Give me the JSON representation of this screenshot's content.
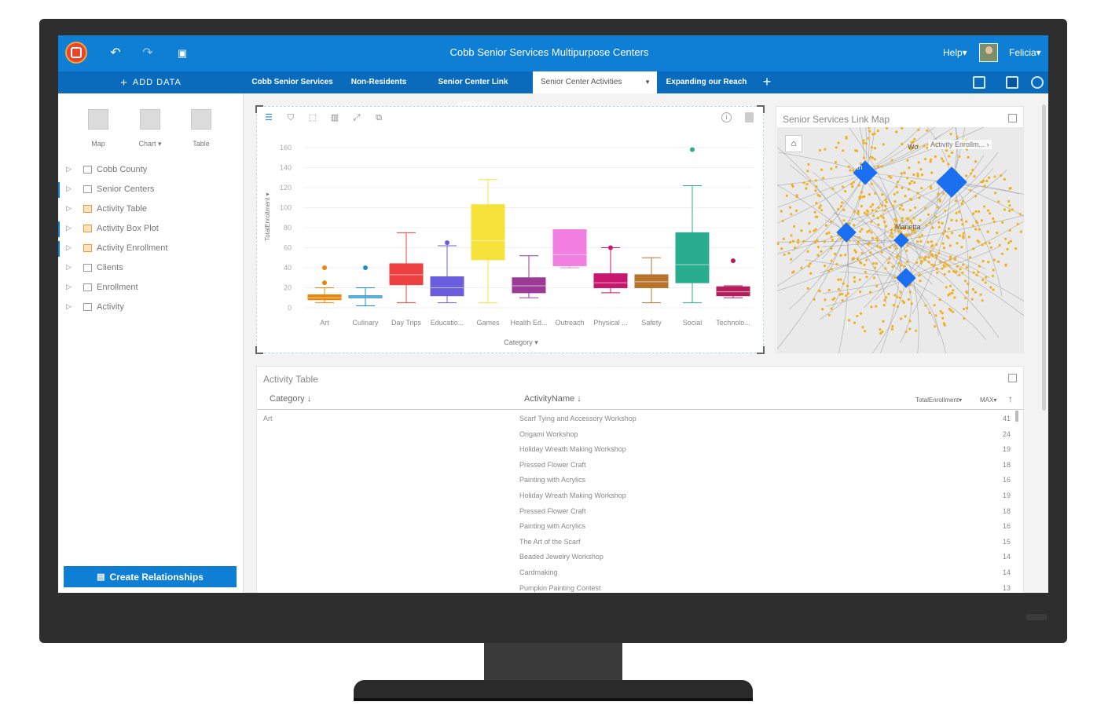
{
  "header": {
    "title": "Cobb Senior Services Multipurpose Centers",
    "help": "Help▾",
    "user": "Felicia▾"
  },
  "tabbar": {
    "add_data": "ADD DATA",
    "tabs": [
      {
        "label": "Cobb Senior Services",
        "active": false
      },
      {
        "label": "Non-Residents",
        "active": false
      },
      {
        "label": "Senior Center Link Analysis",
        "active": false
      },
      {
        "label": "Senior Center Activities",
        "active": true
      },
      {
        "label": "Expanding our Reach",
        "active": false
      }
    ]
  },
  "leftpanel": {
    "vis": [
      {
        "label": "Map"
      },
      {
        "label": "Chart ▾"
      },
      {
        "label": "Table"
      }
    ],
    "datasets": [
      {
        "label": "Cobb County",
        "icon": "table-icon"
      },
      {
        "label": "Senior Centers",
        "icon": "table-icon"
      },
      {
        "label": "Activity Table",
        "icon": "result-table-icon"
      },
      {
        "label": "Activity Box Plot",
        "icon": "result-table-icon"
      },
      {
        "label": "Activity Enrollment",
        "icon": "result-table-icon"
      },
      {
        "label": "Clients",
        "icon": "table-icon"
      },
      {
        "label": "Enrollment",
        "icon": "table-icon"
      },
      {
        "label": "Activity",
        "icon": "table-icon"
      }
    ],
    "create_relationships": "Create Relationships"
  },
  "chart_data": {
    "type": "box",
    "xlabel": "Category ▾",
    "ylabel": "TotalEnrollment ▾",
    "ylim": [
      0,
      160
    ],
    "yticks": [
      0,
      20,
      40,
      60,
      80,
      100,
      120,
      140,
      160
    ],
    "categories": [
      "Art",
      "Culinary",
      "Day Trips",
      "Educatio...",
      "Games",
      "Health Ed...",
      "Outreach",
      "Physical ...",
      "Safety",
      "Social",
      "Technolo..."
    ],
    "boxes": [
      {
        "min": 5,
        "q1": 8,
        "median": 10,
        "q3": 13,
        "max": 20,
        "outliers": [
          25,
          40
        ],
        "color": "#e8850c"
      },
      {
        "min": 2,
        "q1": 10,
        "median": 11,
        "q3": 12,
        "max": 20,
        "outliers": [
          40
        ],
        "color": "#1b8fc7"
      },
      {
        "min": 5,
        "q1": 23,
        "median": 33,
        "q3": 44,
        "max": 75,
        "outliers": [],
        "color": "#ee4040"
      },
      {
        "min": 5,
        "q1": 12,
        "median": 20,
        "q3": 31,
        "max": 62,
        "outliers": [
          65
        ],
        "color": "#6a5ede"
      },
      {
        "min": 5,
        "q1": 48,
        "median": 67,
        "q3": 103,
        "max": 128,
        "outliers": [],
        "color": "#f7e23b"
      },
      {
        "min": 10,
        "q1": 15,
        "median": 22,
        "q3": 30,
        "max": 52,
        "outliers": [],
        "color": "#9c3b97"
      },
      {
        "min": 40,
        "q1": 42,
        "median": 53,
        "q3": 78,
        "max": 78,
        "outliers": [],
        "color": "#f17ee0"
      },
      {
        "min": 15,
        "q1": 20,
        "median": 25,
        "q3": 34,
        "max": 60,
        "outliers": [
          60
        ],
        "color": "#c7176e"
      },
      {
        "min": 5,
        "q1": 20,
        "median": 26,
        "q3": 33,
        "max": 50,
        "outliers": [],
        "color": "#b8732d"
      },
      {
        "min": 5,
        "q1": 25,
        "median": 43,
        "q3": 75,
        "max": 122,
        "outliers": [
          158
        ],
        "color": "#2aad8e"
      },
      {
        "min": 10,
        "q1": 12,
        "median": 16,
        "q3": 21,
        "max": 22,
        "outliers": [
          47
        ],
        "color": "#b21f5a"
      }
    ]
  },
  "map": {
    "title": "Senior Services Link Map",
    "legend": "Activity Enrollm... ›",
    "labels": [
      "Wo",
      "rth",
      "Marietta"
    ]
  },
  "table": {
    "title": "Activity Table",
    "columns": [
      "Category ↓",
      "ActivityName ↓",
      "TotalEnrollment▾",
      "MAX▾"
    ],
    "rows": [
      {
        "category": "Art",
        "activity": "Scarf Tying and Accessory Workshop",
        "value": "41"
      },
      {
        "category": "",
        "activity": "Origami Workshop",
        "value": "24"
      },
      {
        "category": "",
        "activity": "Holiday Wreath Making Workshop",
        "value": "19"
      },
      {
        "category": "",
        "activity": "Pressed Flower Craft",
        "value": "18"
      },
      {
        "category": "",
        "activity": "Painting with Acrylics",
        "value": "16"
      },
      {
        "category": "",
        "activity": "Holiday Wreath Making Workshop",
        "value": "19"
      },
      {
        "category": "",
        "activity": "Pressed Flower Craft",
        "value": "18"
      },
      {
        "category": "",
        "activity": "Painting with Acrylics",
        "value": "16"
      },
      {
        "category": "",
        "activity": "The Art of the Scarf",
        "value": "15"
      },
      {
        "category": "",
        "activity": "Beaded Jewelry Workshop",
        "value": "14"
      },
      {
        "category": "",
        "activity": "Cardmaking",
        "value": "14"
      },
      {
        "category": "",
        "activity": "Pumpkin Painting Contest",
        "value": "13"
      }
    ]
  },
  "colors": {
    "brand": "#0f7fd6",
    "tabbar": "#0a6bbd",
    "map_node": "#f2b01e",
    "map_center": "#1a6ff0"
  }
}
